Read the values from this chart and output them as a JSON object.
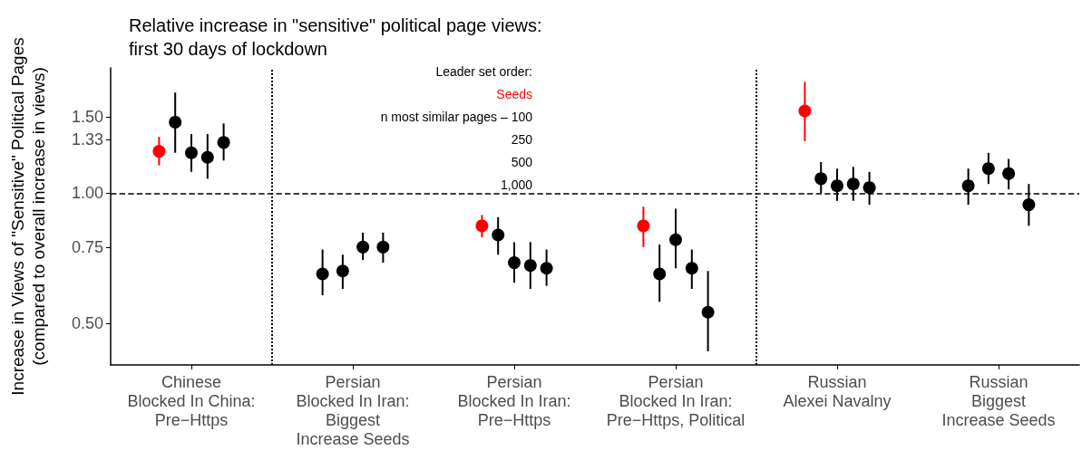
{
  "chart_data": {
    "type": "scatter",
    "title": "Relative increase in \"sensitive\" political page views:\nfirst 30 days of lockdown",
    "ylabel": "Increase in Views of \"Sensitive\" Political Pages\n(compared to overall increase in views)",
    "legend_title": "Leader set order:",
    "legend": "top",
    "marker": "circle",
    "log": "y",
    "grid": false,
    "categories": [
      "Chinese\nBlocked In China:\nPre−Https",
      "Persian\nBlocked In Iran:\nBiggest\nIncrease Seeds",
      "Persian\nBlocked In Iran:\nPre−Https",
      "Persian\nBlocked In Iran:\nPre−Https, Political",
      "Russian\nAlexei Navalny",
      "Russian\nBiggest\nIncrease Seeds"
    ],
    "ylim": [
      0.4,
      1.95
    ],
    "yticks": [
      {
        "value": 0.5,
        "label": "0.50"
      },
      {
        "value": 0.75,
        "label": "0.75"
      },
      {
        "value": 1,
        "label": "1.00"
      },
      1.33,
      {
        "value": 1.5,
        "label": "1.50"
      }
    ],
    "ref_lines": [
      {
        "axis": "y",
        "value": 1,
        "line_style": "dashed"
      }
    ],
    "annotations": [
      "n most similar pages – 100",
      "250",
      "500",
      "1,000"
    ],
    "series": [
      {
        "name": "Seeds",
        "color": "#ff0000",
        "values": [
          1.25,
          null,
          0.84,
          0.84,
          1.55,
          null
        ],
        "errors": [
          [
            1.16,
            1.35
          ],
          null,
          [
            0.79,
            0.89
          ],
          [
            0.75,
            0.93
          ],
          [
            1.32,
            1.81
          ],
          null
        ]
      },
      {
        "color": "#000000",
        "values": [
          1.46,
          0.65,
          0.8,
          0.65,
          1.08,
          1.04
        ],
        "errors": [
          [
            1.24,
            1.71
          ],
          [
            0.58,
            0.74
          ],
          [
            0.72,
            0.88
          ],
          [
            0.56,
            0.76
          ],
          [
            1.0,
            1.18
          ],
          [
            0.94,
            1.14
          ]
        ]
      },
      {
        "color": "#000000",
        "values": [
          1.24,
          0.66,
          0.69,
          0.78,
          1.04,
          1.14
        ],
        "errors": [
          [
            1.12,
            1.37
          ],
          [
            0.6,
            0.72
          ],
          [
            0.62,
            0.77
          ],
          [
            0.67,
            0.92
          ],
          [
            0.96,
            1.14
          ],
          [
            1.05,
            1.24
          ]
        ]
      },
      {
        "color": "#000000",
        "values": [
          1.21,
          0.75,
          0.68,
          0.67,
          1.05,
          1.11
        ],
        "errors": [
          [
            1.08,
            1.37
          ],
          [
            0.7,
            0.81
          ],
          [
            0.6,
            0.77
          ],
          [
            0.6,
            0.74
          ],
          [
            0.96,
            1.15
          ],
          [
            1.02,
            1.2
          ]
        ]
      },
      {
        "color": "#000000",
        "values": [
          1.31,
          0.75,
          0.67,
          0.53,
          1.03,
          0.94
        ],
        "errors": [
          [
            1.19,
            1.45
          ],
          [
            0.69,
            0.81
          ],
          [
            0.61,
            0.74
          ],
          [
            0.43,
            0.66
          ],
          [
            0.94,
            1.12
          ],
          [
            0.84,
            1.05
          ]
        ]
      }
    ]
  }
}
